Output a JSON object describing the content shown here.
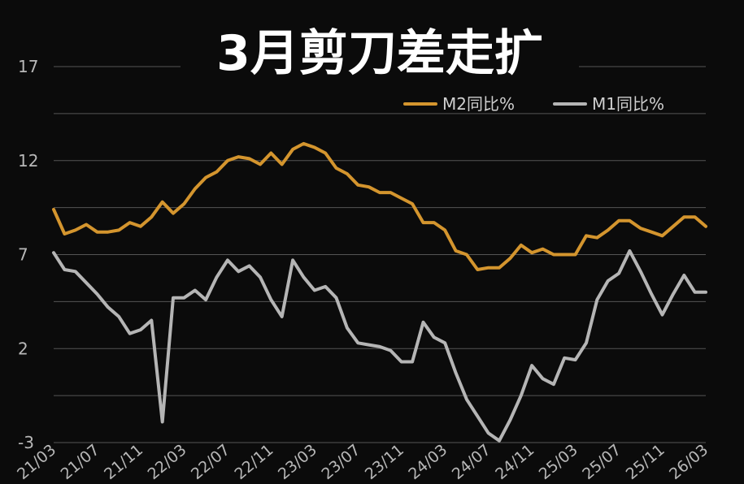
{
  "chart_data": {
    "type": "line",
    "title": "3月剪刀差走扩",
    "xlabel": "",
    "ylabel": "",
    "ylim": [
      -3,
      17
    ],
    "yticks": [
      17,
      12,
      7,
      2,
      -3
    ],
    "grid": true,
    "legend_position": "top-right",
    "x": [
      "21/03",
      "21/04",
      "21/05",
      "21/06",
      "21/07",
      "21/08",
      "21/09",
      "21/10",
      "21/11",
      "21/12",
      "22/01",
      "22/02",
      "22/03",
      "22/04",
      "22/05",
      "22/06",
      "22/07",
      "22/08",
      "22/09",
      "22/10",
      "22/11",
      "22/12",
      "23/01",
      "23/02",
      "23/03",
      "23/04",
      "23/05",
      "23/06",
      "23/07",
      "23/08",
      "23/09",
      "23/10",
      "23/11",
      "23/12",
      "24/01",
      "24/02",
      "24/03",
      "24/04",
      "24/05",
      "24/06",
      "24/07",
      "24/08",
      "24/09",
      "24/10",
      "24/11",
      "24/12",
      "25/01",
      "25/02",
      "25/03",
      "25/04",
      "25/05",
      "25/06",
      "25/07",
      "25/08",
      "25/09",
      "25/10",
      "25/11",
      "25/12",
      "26/01",
      "26/02",
      "26/03"
    ],
    "xtick_labels": [
      "21/03",
      "21/07",
      "21/11",
      "22/03",
      "22/07",
      "22/11",
      "23/03",
      "23/07",
      "23/11",
      "24/03",
      "24/07",
      "24/11",
      "25/03",
      "25/07",
      "25/11",
      "26/03"
    ],
    "series": [
      {
        "name": "M2同比%",
        "color": "#d4952e",
        "values": [
          9.4,
          8.1,
          8.3,
          8.6,
          8.2,
          8.2,
          8.3,
          8.7,
          8.5,
          9.0,
          9.8,
          9.2,
          9.7,
          10.5,
          11.1,
          11.4,
          12.0,
          12.2,
          12.1,
          11.8,
          12.4,
          11.8,
          12.6,
          12.9,
          12.7,
          12.4,
          11.6,
          11.3,
          10.7,
          10.6,
          10.3,
          10.3,
          10.0,
          9.7,
          8.7,
          8.7,
          8.3,
          7.2,
          7.0,
          6.2,
          6.3,
          6.3,
          6.8,
          7.5,
          7.1,
          7.3,
          7.0,
          7.0,
          7.0,
          8.0,
          7.9,
          8.3,
          8.8,
          8.8,
          8.4,
          8.2,
          8.0,
          8.5,
          9.0,
          9.0,
          8.5
        ]
      },
      {
        "name": "M1同比%",
        "color": "#b5b5b5",
        "values": [
          7.1,
          6.2,
          6.1,
          5.5,
          4.9,
          4.2,
          3.7,
          2.8,
          3.0,
          3.5,
          -1.9,
          4.7,
          4.7,
          5.1,
          4.6,
          5.8,
          6.7,
          6.1,
          6.4,
          5.8,
          4.6,
          3.7,
          6.7,
          5.8,
          5.1,
          5.3,
          4.7,
          3.1,
          2.3,
          2.2,
          2.1,
          1.9,
          1.3,
          1.3,
          3.4,
          2.6,
          2.3,
          0.7,
          -0.7,
          -1.6,
          -2.5,
          -2.9,
          -1.8,
          -0.5,
          1.1,
          0.4,
          0.1,
          1.5,
          1.4,
          2.3,
          4.6,
          5.6,
          6.0,
          7.2,
          6.1,
          4.9,
          3.8,
          4.9,
          5.9,
          5.0,
          5.0
        ]
      }
    ]
  }
}
